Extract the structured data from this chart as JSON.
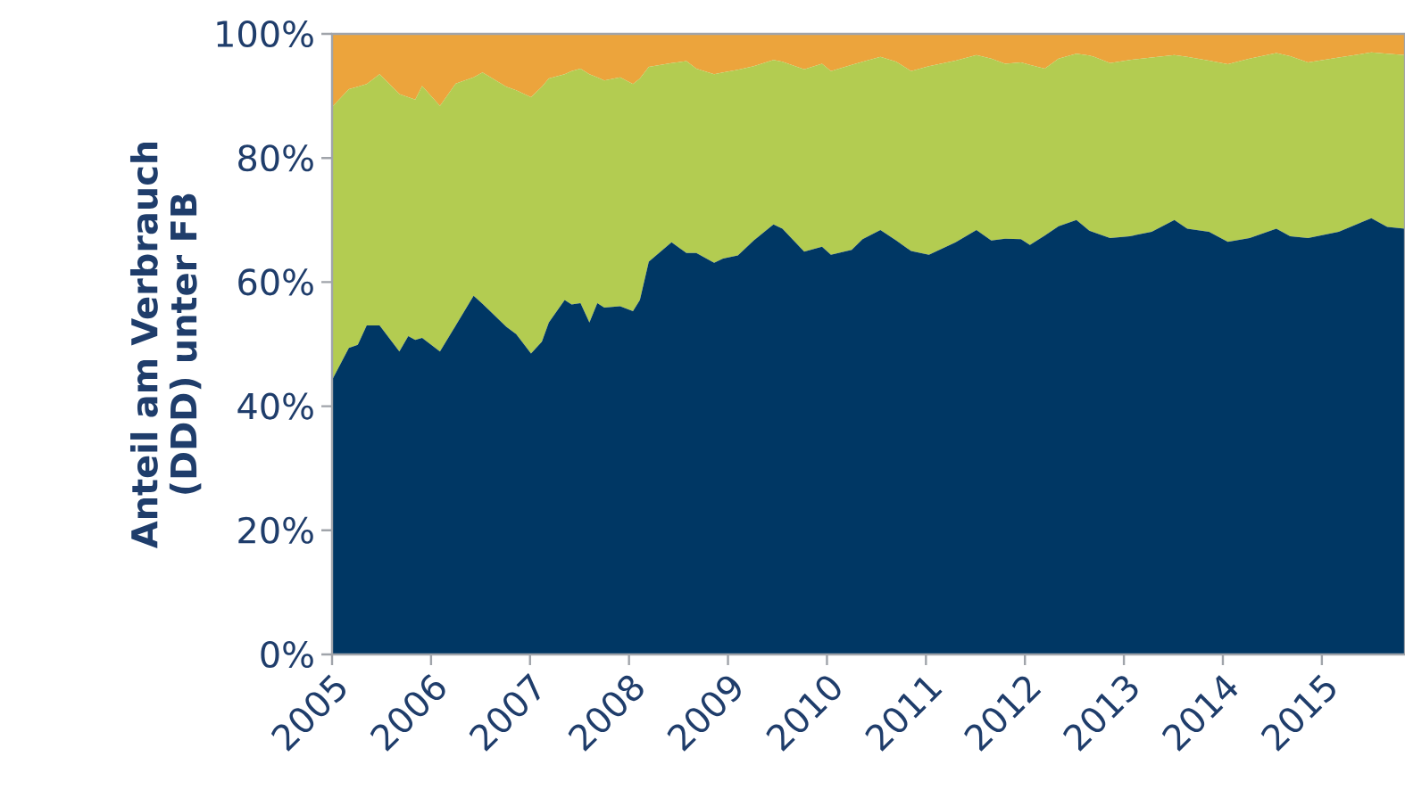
{
  "chart_data": {
    "type": "area",
    "stacked": true,
    "ylabel": "Anteil am Verbrauch (DDD) unter FB",
    "x": [
      2005,
      2005.17,
      2005.26,
      2005.35,
      2005.48,
      2005.68,
      2005.77,
      2005.84,
      2005.91,
      2006.09,
      2006.25,
      2006.43,
      2006.52,
      2006.76,
      2006.86,
      2007.01,
      2007.12,
      2007.19,
      2007.35,
      2007.42,
      2007.51,
      2007.6,
      2007.68,
      2007.75,
      2007.91,
      2008.04,
      2008.11,
      2008.2,
      2008.43,
      2008.58,
      2008.68,
      2008.86,
      2008.95,
      2009.1,
      2009.26,
      2009.46,
      2009.55,
      2009.77,
      2009.95,
      2010.04,
      2010.25,
      2010.36,
      2010.54,
      2010.7,
      2010.85,
      2011.03,
      2011.3,
      2011.51,
      2011.66,
      2011.8,
      2011.96,
      2012.05,
      2012.2,
      2012.34,
      2012.52,
      2012.65,
      2012.7,
      2012.86,
      2013.06,
      2013.28,
      2013.51,
      2013.64,
      2013.86,
      2014.05,
      2014.27,
      2014.54,
      2014.68,
      2014.86,
      2015.17,
      2015.5,
      2015.66,
      2015.84
    ],
    "series": [
      {
        "color": "#003764",
        "values": [
          44.2,
          49.4,
          49.9,
          53.0,
          53.0,
          48.8,
          51.3,
          50.7,
          51.0,
          48.8,
          53.0,
          57.8,
          56.5,
          52.8,
          51.6,
          48.5,
          50.4,
          53.5,
          57.1,
          56.4,
          56.6,
          53.5,
          56.6,
          55.9,
          56.1,
          55.3,
          57.1,
          63.3,
          66.4,
          64.7,
          64.7,
          63.1,
          63.8,
          64.3,
          66.7,
          69.3,
          68.6,
          64.9,
          65.7,
          64.4,
          65.2,
          66.9,
          68.4,
          66.7,
          65.0,
          64.4,
          66.4,
          68.4,
          66.7,
          67.0,
          66.9,
          66.0,
          67.5,
          69.0,
          70.0,
          68.3,
          68.0,
          67.1,
          67.4,
          68.1,
          70.0,
          68.6,
          68.1,
          66.5,
          67.1,
          68.6,
          67.4,
          67.1,
          68.1,
          70.3,
          68.9,
          68.6
        ]
      },
      {
        "color": "#b3cc51",
        "values": [
          44.0,
          41.7,
          41.6,
          38.9,
          40.5,
          41.5,
          38.5,
          38.7,
          40.6,
          39.6,
          39.0,
          35.2,
          37.3,
          38.7,
          39.3,
          41.3,
          41.1,
          39.3,
          36.4,
          37.6,
          37.8,
          40.0,
          36.4,
          36.6,
          36.9,
          36.6,
          35.7,
          31.4,
          28.9,
          30.9,
          29.7,
          30.4,
          30.0,
          29.9,
          28.1,
          26.5,
          26.9,
          29.4,
          29.5,
          29.6,
          29.8,
          28.6,
          27.9,
          28.8,
          29.0,
          30.4,
          29.3,
          28.2,
          29.3,
          28.2,
          28.5,
          29.0,
          26.9,
          27.0,
          26.8,
          28.2,
          28.3,
          28.2,
          28.4,
          28.1,
          26.6,
          27.7,
          27.6,
          28.6,
          28.9,
          28.3,
          29.0,
          28.3,
          28.1,
          26.7,
          27.9,
          28.0
        ]
      },
      {
        "color": "#eca43c",
        "values": [
          11.8,
          8.9,
          8.5,
          8.1,
          6.5,
          9.7,
          10.2,
          10.6,
          8.4,
          11.6,
          8.0,
          7.0,
          6.2,
          8.5,
          9.1,
          10.2,
          8.5,
          7.2,
          6.5,
          6.0,
          5.6,
          6.5,
          7.0,
          7.5,
          7.0,
          8.1,
          7.2,
          5.3,
          4.7,
          4.4,
          5.6,
          6.5,
          6.2,
          5.8,
          5.2,
          4.2,
          4.5,
          5.7,
          4.8,
          6.0,
          5.0,
          4.5,
          3.7,
          4.5,
          6.0,
          5.2,
          4.3,
          3.4,
          4.0,
          4.8,
          4.6,
          5.0,
          5.6,
          4.0,
          3.2,
          3.5,
          3.7,
          4.7,
          4.2,
          3.8,
          3.4,
          3.7,
          4.3,
          4.9,
          4.0,
          3.1,
          3.6,
          4.6,
          3.8,
          3.0,
          3.2,
          3.4
        ]
      }
    ],
    "xlim": [
      2005,
      2015.84
    ],
    "xticks": [
      2005,
      2006,
      2007,
      2008,
      2009,
      2010,
      2011,
      2012,
      2013,
      2014,
      2015
    ],
    "ylim": [
      0,
      100
    ],
    "yticks": [
      {
        "value": 0,
        "label": "0%"
      },
      {
        "value": 20,
        "label": "20%"
      },
      {
        "value": 40,
        "label": "40%"
      },
      {
        "value": 60,
        "label": "60%"
      },
      {
        "value": 80,
        "label": "80%"
      },
      {
        "value": 100,
        "label": "100%"
      }
    ]
  }
}
